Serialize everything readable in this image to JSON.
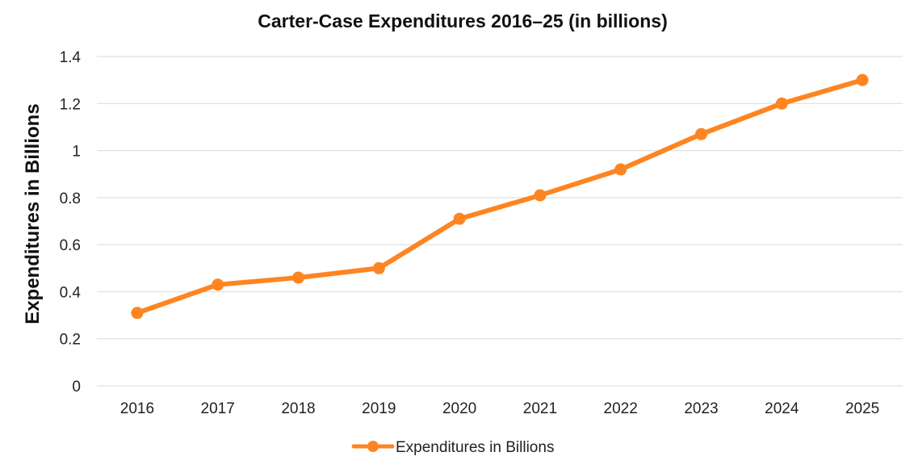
{
  "chart_data": {
    "type": "line",
    "title": "Carter-Case Expenditures 2016–25 (in billions)",
    "xlabel": "",
    "ylabel": "Expenditures in Billions",
    "categories": [
      "2016",
      "2017",
      "2018",
      "2019",
      "2020",
      "2021",
      "2022",
      "2023",
      "2024",
      "2025"
    ],
    "series": [
      {
        "name": "Expenditures in Billions",
        "values": [
          0.31,
          0.43,
          0.46,
          0.5,
          0.71,
          0.81,
          0.92,
          1.07,
          1.2,
          1.3
        ],
        "color": "#fd8521"
      }
    ],
    "ylim": [
      0,
      1.4
    ],
    "yticks": [
      "0",
      "0.2",
      "0.4",
      "0.6",
      "0.8",
      "1",
      "1.2",
      "1.4"
    ],
    "grid": true,
    "legend": "bottom-center"
  }
}
